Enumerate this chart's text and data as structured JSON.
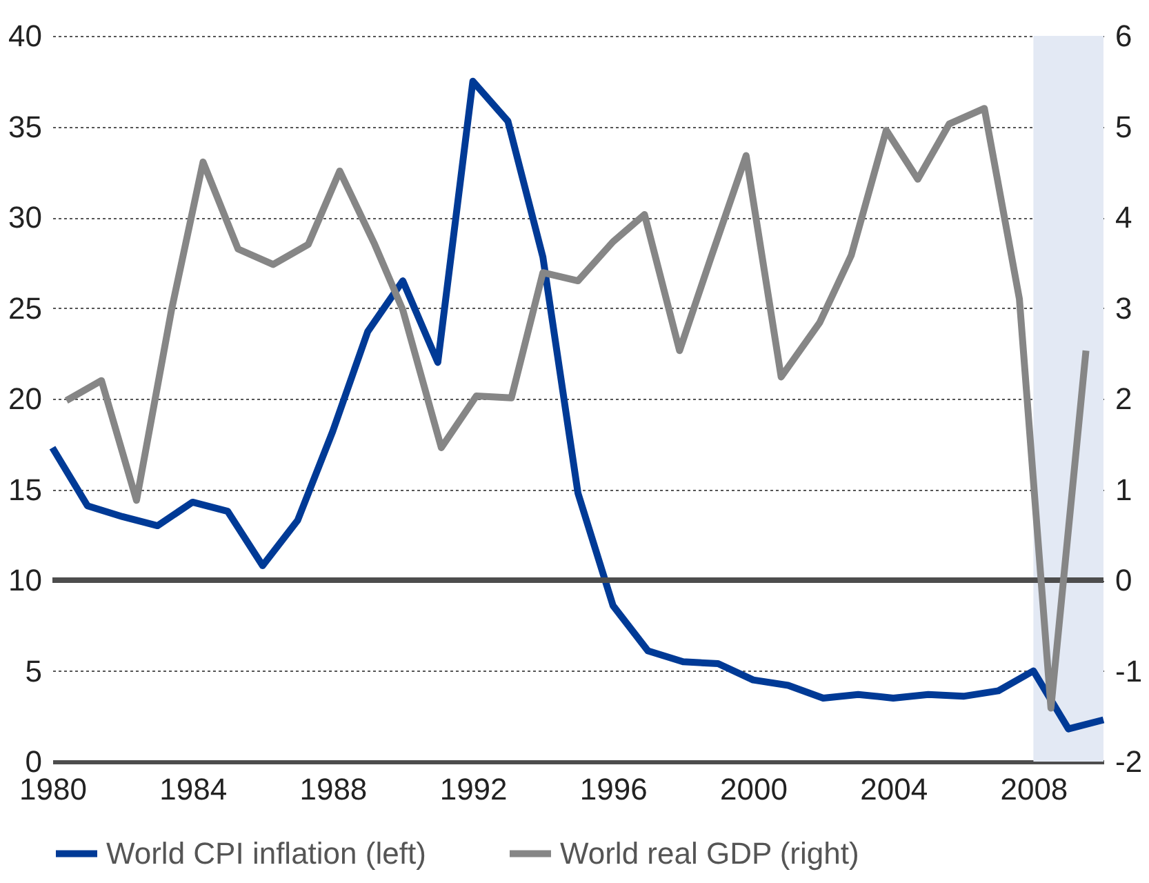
{
  "chart_data": {
    "type": "line",
    "xlim": [
      1980,
      2010
    ],
    "xticks": [
      1980,
      1984,
      1988,
      1992,
      1996,
      2000,
      2004,
      2008
    ],
    "ylim": [
      0,
      40
    ],
    "yticks": [
      0,
      5,
      10,
      15,
      20,
      25,
      30,
      35,
      40
    ],
    "y2lim": [
      -2,
      6
    ],
    "y2ticks": [
      -2,
      -1,
      0,
      1,
      2,
      3,
      4,
      5,
      6
    ],
    "grid": "y",
    "legend": "bottom",
    "line_style": "solid",
    "marker": "none",
    "series": [
      {
        "name": "World CPI inflation (left)",
        "color": "#003a96",
        "x": [
          1980,
          1981,
          1982,
          1983,
          1984,
          1985,
          1986,
          1987,
          1988,
          1989,
          1990,
          1991,
          1992,
          1993,
          1994,
          1995,
          1996,
          1997,
          1998,
          1999,
          2000,
          2001,
          2002,
          2003,
          2004,
          2005,
          2006,
          2007,
          2008,
          2009,
          2010
        ],
        "values": [
          17.3,
          14.1,
          13.5,
          13.0,
          14.3,
          13.8,
          10.8,
          13.3,
          18.2,
          23.7,
          26.5,
          22.0,
          37.5,
          35.3,
          27.8,
          14.8,
          8.6,
          6.1,
          5.5,
          5.4,
          4.5,
          4.2,
          3.5,
          3.7,
          3.5,
          3.7,
          3.6,
          3.9,
          5.0,
          1.8,
          2.3
        ]
      },
      {
        "name": "World real GDP (right)",
        "color": "#868686",
        "axis": "y2",
        "x": [
          1980.4,
          1981.4,
          1982.4,
          1983.4,
          1984.3,
          1985.3,
          1986.3,
          1987.3,
          1988.2,
          1989.2,
          1990.0,
          1991.1,
          1992.1,
          1993.1,
          1994.0,
          1995.0,
          1996.0,
          1996.9,
          1997.9,
          1998.8,
          1999.8,
          2000.8,
          2001.9,
          2002.8,
          2003.8,
          2004.7,
          2005.6,
          2006.6,
          2007.6,
          2008.5,
          2009.5
        ],
        "values": [
          1.98,
          2.2,
          0.88,
          2.98,
          4.61,
          3.65,
          3.48,
          3.7,
          4.51,
          3.7,
          2.98,
          1.46,
          2.03,
          2.01,
          3.39,
          3.3,
          3.73,
          4.03,
          2.53,
          3.56,
          4.68,
          2.24,
          2.84,
          3.58,
          4.96,
          4.42,
          5.03,
          5.2,
          3.1,
          -1.41,
          2.53
        ]
      }
    ],
    "ref_lines": [
      {
        "axis": "y2",
        "value": 0,
        "color": "#4d4d4d"
      }
    ],
    "bands": [
      {
        "axis": "x",
        "from": 2008,
        "to": 2010,
        "color": "#e3e9f4"
      }
    ]
  }
}
